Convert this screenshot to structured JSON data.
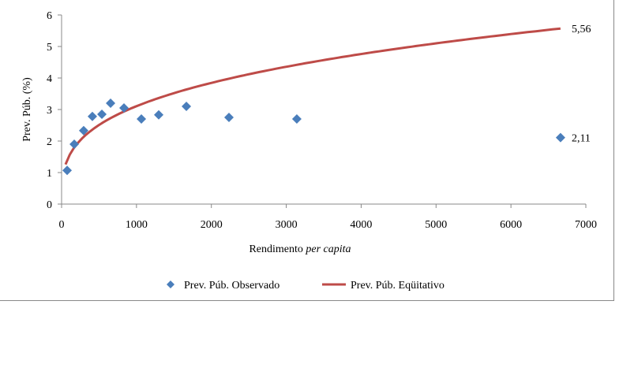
{
  "chart_data": {
    "type": "scatter",
    "title": "",
    "xlabel_prefix": "Rendimento ",
    "xlabel_italic": "per capita",
    "ylabel": "Prev. Púb. (%)",
    "xlim": [
      0,
      7000
    ],
    "ylim": [
      0,
      6
    ],
    "xticks": [
      0,
      1000,
      2000,
      3000,
      4000,
      5000,
      6000,
      7000
    ],
    "yticks": [
      0,
      1,
      2,
      3,
      4,
      5,
      6
    ],
    "grid": false,
    "legend_position": "bottom",
    "series": [
      {
        "name": "Prev. Púb. Observado",
        "kind": "scatter",
        "marker": "diamond",
        "color": "#4a7ebb",
        "x": [
          74,
          169,
          295,
          411,
          538,
          654,
          833,
          1065,
          1297,
          1666,
          2235,
          3141,
          6662
        ],
        "y": [
          1.07,
          1.9,
          2.33,
          2.78,
          2.85,
          3.2,
          3.05,
          2.7,
          2.83,
          3.1,
          2.75,
          2.7,
          2.11
        ],
        "end_label": "2,11"
      },
      {
        "name": "Prev. Púb. Eqüitativo",
        "kind": "line",
        "color": "#be4b48",
        "x_start": 53,
        "x_end": 6662,
        "power_fit": {
          "a": 0.37,
          "b": 0.308
        },
        "end_label": "5,56"
      }
    ]
  }
}
